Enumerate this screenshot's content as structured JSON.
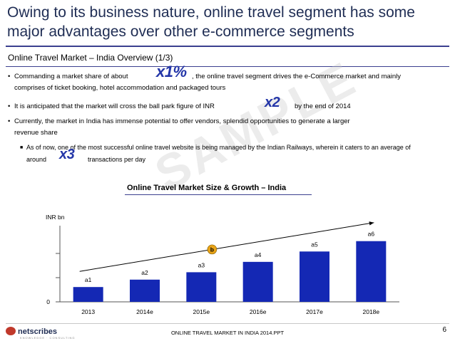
{
  "slide": {
    "title": "Owing to its business nature, online travel segment has some major advantages over other e-commerce segments",
    "subtitle": "Online Travel Market – India Overview (1/3)"
  },
  "bullets": [
    {
      "line1_pre": "Commanding a market share of about",
      "badge": "x1%",
      "line1_post": ", the online travel segment drives the e-Commerce market and mainly",
      "line2": "comprises of ticket booking, hotel accommodation and packaged tours"
    },
    {
      "line1_pre": "It is anticipated that the market will cross the ball park figure of INR",
      "badge": "x2",
      "line1_post": "by the end of 2014"
    },
    {
      "line1": "Currently, the market in India has immense potential to offer vendors, splendid opportunities to generate a larger",
      "line2": "revenue share"
    },
    {
      "line1": "As of now, one of the most successful online travel website is being managed by the Indian Railways, wherein it caters to an average of",
      "line2_pre": "around",
      "badge": "x3",
      "line2_post": "transactions per day"
    }
  ],
  "watermark": "SAMPLE",
  "chart_data": {
    "type": "bar",
    "title": "Online Travel Market Size & Growth – India",
    "ylabel": "INR bn",
    "categories": [
      "2013",
      "2014e",
      "2015e",
      "2016e",
      "2017e",
      "2018e"
    ],
    "values": [
      2,
      3,
      4,
      5.4,
      6.8,
      8.2
    ],
    "data_labels": [
      "a1",
      "a2",
      "a3",
      "a4",
      "a5",
      "a6"
    ],
    "ylim": [
      0,
      10
    ],
    "y_tick_labels": [
      "0"
    ],
    "growth_label": "b",
    "colors": {
      "bar": "#1428b4",
      "badge": "#e8a317",
      "axis": "#555555"
    }
  },
  "footer": {
    "logo_text": "netscribes",
    "tagline": "KNOWLEDGE · CONSULTING",
    "center_text": "ONLINE TRAVEL MARKET IN INDIA 2014.PPT",
    "page_number": "6"
  }
}
